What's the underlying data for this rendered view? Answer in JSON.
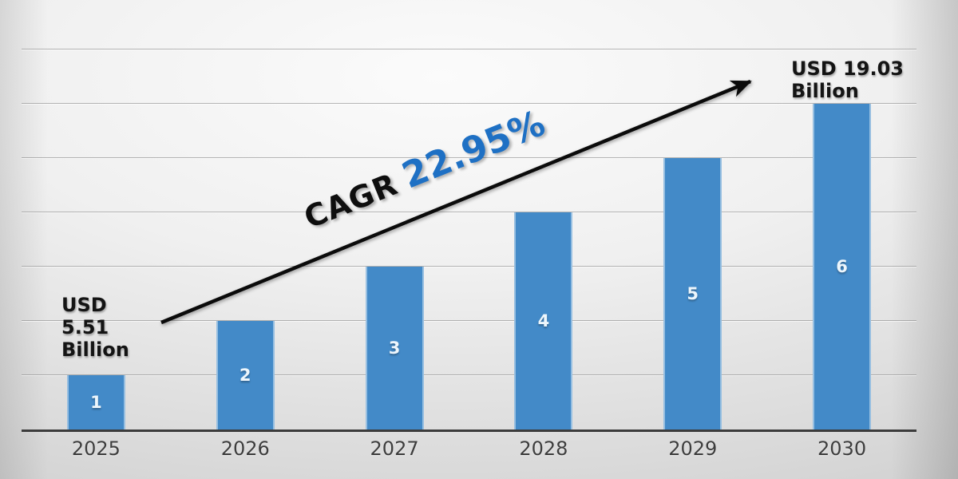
{
  "chart_data": {
    "type": "bar",
    "title": "",
    "xlabel": "",
    "ylabel": "",
    "categories": [
      "2025",
      "2026",
      "2027",
      "2028",
      "2029",
      "2030"
    ],
    "values": [
      1,
      2,
      3,
      4,
      5,
      6
    ],
    "bar_value_labels": [
      "1",
      "2",
      "3",
      "4",
      "5",
      "6"
    ],
    "ylim": [
      0,
      7
    ],
    "grid": true,
    "legend": "none",
    "bar_color": "#438ac8",
    "annotations": {
      "start_value_usd_billion": 5.51,
      "end_value_usd_billion": 19.03,
      "cagr_percent": 22.95
    }
  },
  "annotations": {
    "start_value": {
      "lines": [
        "USD",
        "5.51",
        "Billion"
      ]
    },
    "end_value": {
      "lines": [
        "USD 19.03",
        "Billion"
      ]
    },
    "cagr": {
      "prefix": "CAGR",
      "value": "22.95%",
      "value_color": "#1e70c4"
    }
  },
  "colors": {
    "bar": "#438ac8",
    "bar_label": "#edf6fc",
    "axis": "#3c3c3c",
    "gridline": "#7d7d7d",
    "arrow": "#0b0b0b",
    "cagr_blue": "#1e70c4",
    "year_label": "#3d3d3d"
  }
}
